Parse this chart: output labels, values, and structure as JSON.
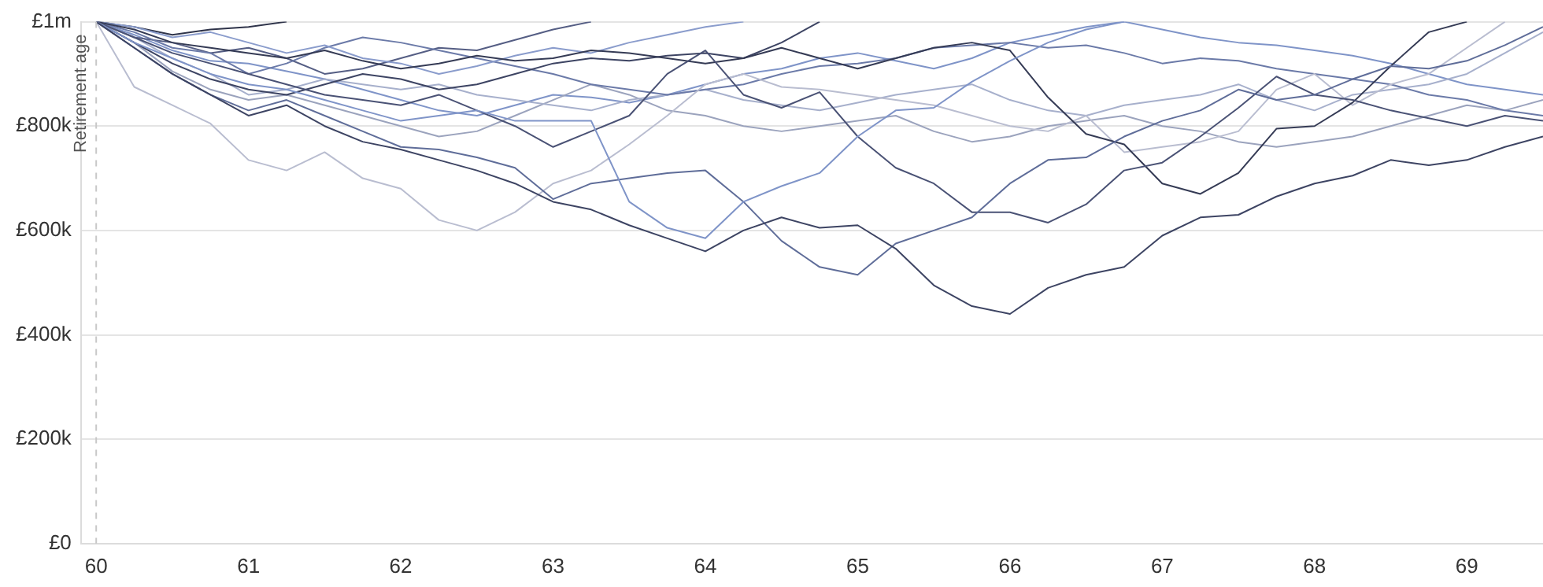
{
  "chart_data": {
    "type": "line",
    "x": [
      60,
      60.25,
      60.5,
      60.75,
      61,
      61.25,
      61.5,
      61.75,
      62,
      62.25,
      62.5,
      62.75,
      63,
      63.25,
      63.5,
      63.75,
      64,
      64.25,
      64.5,
      64.75,
      65,
      65.25,
      65.5,
      65.75,
      66,
      66.25,
      66.5,
      66.75,
      67,
      67.25,
      67.5,
      67.75,
      68,
      68.25,
      68.5,
      68.75,
      69,
      69.25,
      69.5
    ],
    "series": [
      {
        "color": "#3d4463",
        "values": [
          1000000,
          950000,
          900000,
          860000,
          820000,
          840000,
          800000,
          770000,
          755000,
          735000,
          715000,
          690000,
          655000,
          640000,
          610000,
          585000,
          560000,
          600000,
          625000,
          605000,
          610000,
          565000,
          495000,
          455000,
          440000,
          490000,
          515000,
          530000,
          590000,
          625000,
          630000,
          665000,
          690000,
          705000,
          735000,
          725000,
          735000,
          760000,
          780000
        ]
      },
      {
        "color": "#7f94c8",
        "values": [
          1000000,
          960000,
          930000,
          900000,
          880000,
          870000,
          850000,
          830000,
          810000,
          820000,
          830000,
          810000,
          810000,
          810000,
          655000,
          605000,
          585000,
          655000,
          685000,
          710000,
          780000,
          830000,
          835000,
          885000,
          925000,
          960000,
          985000,
          1000000,
          null,
          null,
          null,
          null,
          null,
          null,
          null,
          null,
          null,
          null,
          null
        ]
      },
      {
        "color": "#5f6d99",
        "values": [
          1000000,
          950000,
          900000,
          860000,
          830000,
          850000,
          820000,
          790000,
          760000,
          755000,
          740000,
          720000,
          660000,
          690000,
          700000,
          710000,
          715000,
          655000,
          580000,
          530000,
          515000,
          575000,
          600000,
          625000,
          690000,
          735000,
          740000,
          780000,
          810000,
          830000,
          870000,
          850000,
          860000,
          890000,
          915000,
          910000,
          925000,
          955000,
          990000
        ]
      },
      {
        "color": "#4a5275",
        "values": [
          1000000,
          970000,
          940000,
          920000,
          900000,
          880000,
          860000,
          850000,
          840000,
          860000,
          830000,
          800000,
          760000,
          790000,
          820000,
          900000,
          945000,
          860000,
          835000,
          865000,
          780000,
          720000,
          690000,
          635000,
          635000,
          615000,
          650000,
          715000,
          730000,
          780000,
          835000,
          895000,
          860000,
          850000,
          830000,
          815000,
          800000,
          820000,
          810000
        ]
      },
      {
        "color": "#353b55",
        "values": [
          1000000,
          985000,
          960000,
          950000,
          940000,
          930000,
          945000,
          925000,
          910000,
          920000,
          935000,
          925000,
          930000,
          945000,
          940000,
          930000,
          920000,
          930000,
          950000,
          930000,
          910000,
          930000,
          950000,
          960000,
          945000,
          855000,
          785000,
          765000,
          690000,
          670000,
          710000,
          795000,
          800000,
          845000,
          915000,
          980000,
          1000000,
          null,
          null
        ]
      },
      {
        "color": "#b9bdd0",
        "values": [
          1000000,
          875000,
          840000,
          805000,
          735000,
          715000,
          750000,
          700000,
          680000,
          620000,
          600000,
          635000,
          690000,
          715000,
          765000,
          820000,
          880000,
          900000,
          875000,
          870000,
          860000,
          850000,
          840000,
          820000,
          800000,
          790000,
          820000,
          750000,
          760000,
          770000,
          790000,
          870000,
          900000,
          840000,
          880000,
          900000,
          950000,
          1000000,
          null
        ]
      },
      {
        "color": "#8a9ccc",
        "values": [
          1000000,
          990000,
          970000,
          980000,
          960000,
          940000,
          955000,
          930000,
          920000,
          900000,
          915000,
          935000,
          950000,
          940000,
          960000,
          975000,
          990000,
          1000000,
          null,
          null,
          null,
          null,
          null,
          null,
          null,
          null,
          null,
          null,
          null,
          null,
          null,
          null,
          null,
          null,
          null,
          null,
          null,
          null,
          null
        ]
      },
      {
        "color": "#3d4463",
        "values": [
          1000000,
          960000,
          920000,
          890000,
          870000,
          860000,
          880000,
          900000,
          890000,
          870000,
          880000,
          900000,
          920000,
          930000,
          925000,
          935000,
          940000,
          930000,
          960000,
          1000000,
          null,
          null,
          null,
          null,
          null,
          null,
          null,
          null,
          null,
          null,
          null,
          null,
          null,
          null,
          null,
          null,
          null,
          null,
          null
        ]
      },
      {
        "color": "#6b7aa8",
        "values": [
          1000000,
          980000,
          950000,
          940000,
          900000,
          920000,
          950000,
          970000,
          960000,
          945000,
          930000,
          915000,
          900000,
          880000,
          870000,
          860000,
          870000,
          880000,
          900000,
          915000,
          920000,
          930000,
          950000,
          955000,
          960000,
          950000,
          955000,
          940000,
          920000,
          930000,
          925000,
          910000,
          900000,
          890000,
          880000,
          860000,
          850000,
          830000,
          820000
        ]
      },
      {
        "color": "#a7b0cc",
        "values": [
          1000000,
          970000,
          930000,
          900000,
          860000,
          870000,
          890000,
          880000,
          870000,
          880000,
          860000,
          850000,
          840000,
          830000,
          850000,
          860000,
          870000,
          850000,
          840000,
          830000,
          845000,
          860000,
          870000,
          880000,
          850000,
          830000,
          820000,
          840000,
          850000,
          860000,
          880000,
          850000,
          830000,
          860000,
          870000,
          880000,
          900000,
          940000,
          980000
        ]
      },
      {
        "color": "#555e84",
        "values": [
          1000000,
          970000,
          960000,
          940000,
          950000,
          930000,
          900000,
          910000,
          930000,
          950000,
          945000,
          965000,
          985000,
          1000000,
          null,
          null,
          null,
          null,
          null,
          null,
          null,
          null,
          null,
          null,
          null,
          null,
          null,
          null,
          null,
          null,
          null,
          null,
          null,
          null,
          null,
          null,
          null,
          null,
          null
        ]
      },
      {
        "color": "#9ba3bd",
        "values": [
          1000000,
          960000,
          905000,
          870000,
          850000,
          860000,
          840000,
          820000,
          800000,
          780000,
          790000,
          820000,
          850000,
          880000,
          860000,
          830000,
          820000,
          800000,
          790000,
          800000,
          810000,
          820000,
          790000,
          770000,
          780000,
          800000,
          810000,
          820000,
          800000,
          790000,
          770000,
          760000,
          770000,
          780000,
          800000,
          820000,
          840000,
          830000,
          850000
        ]
      },
      {
        "color": "#2f344a",
        "values": [
          1000000,
          990000,
          975000,
          985000,
          990000,
          1000000,
          null,
          null,
          null,
          null,
          null,
          null,
          null,
          null,
          null,
          null,
          null,
          null,
          null,
          null,
          null,
          null,
          null,
          null,
          null,
          null,
          null,
          null,
          null,
          null,
          null,
          null,
          null,
          null,
          null,
          null,
          null,
          null,
          null
        ]
      },
      {
        "color": "#7f94c8",
        "values": [
          1000000,
          975000,
          945000,
          925000,
          920000,
          905000,
          890000,
          870000,
          850000,
          830000,
          820000,
          840000,
          860000,
          855000,
          845000,
          860000,
          880000,
          900000,
          910000,
          930000,
          940000,
          925000,
          910000,
          930000,
          960000,
          975000,
          990000,
          1000000,
          985000,
          970000,
          960000,
          955000,
          945000,
          935000,
          920000,
          900000,
          880000,
          870000,
          860000
        ]
      }
    ],
    "xlim": [
      59.9,
      69.5
    ],
    "xticks": [
      60,
      61,
      62,
      63,
      64,
      65,
      66,
      67,
      68,
      69
    ],
    "ylim": [
      0,
      1000000
    ],
    "yticks": [
      {
        "value": 0,
        "label": "£0"
      },
      {
        "value": 200000,
        "label": "£200k"
      },
      {
        "value": 400000,
        "label": "£400k"
      },
      {
        "value": 600000,
        "label": "£600k"
      },
      {
        "value": 800000,
        "label": "£800k"
      },
      {
        "value": 1000000,
        "label": "£1m"
      }
    ],
    "ref_lines": [
      {
        "axis": "x",
        "value": 60,
        "label": "Retirement age",
        "color": "#c8c8c8",
        "line_style": "dashed"
      }
    ],
    "grid": "y"
  }
}
